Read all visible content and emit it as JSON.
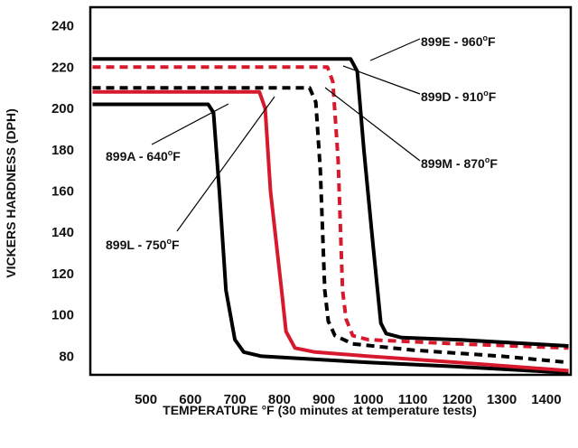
{
  "chart_data": {
    "type": "line",
    "title": "",
    "xlabel": "TEMPERATURE °F (30 minutes at temperature tests)",
    "ylabel": "VICKERS HARDNESS (DPH)",
    "xlim": [
      375,
      1455
    ],
    "ylim": [
      71,
      249
    ],
    "x_ticks": [
      "500",
      "600",
      "700",
      "800",
      "900",
      "1000",
      "1100",
      "1200",
      "1300",
      "1400"
    ],
    "x_tick_values": [
      500,
      600,
      700,
      800,
      900,
      1000,
      1100,
      1200,
      1300,
      1400
    ],
    "y_ticks": [
      "80",
      "100",
      "120",
      "140",
      "160",
      "180",
      "200",
      "220",
      "240"
    ],
    "y_tick_values": [
      80,
      100,
      120,
      140,
      160,
      180,
      200,
      220,
      240
    ],
    "grid": false,
    "series": [
      {
        "name": "899A - 640ºF",
        "color": "#000000",
        "dashed": false,
        "points": [
          [
            380,
            202
          ],
          [
            640,
            202
          ],
          [
            652,
            198
          ],
          [
            665,
            160
          ],
          [
            680,
            112
          ],
          [
            700,
            88
          ],
          [
            720,
            82
          ],
          [
            760,
            80
          ],
          [
            1000,
            77
          ],
          [
            1200,
            75
          ],
          [
            1450,
            72
          ]
        ]
      },
      {
        "name": "899L - 750ºF",
        "color": "#d7192e",
        "dashed": false,
        "points": [
          [
            380,
            208
          ],
          [
            755,
            208
          ],
          [
            768,
            200
          ],
          [
            780,
            160
          ],
          [
            805,
            112
          ],
          [
            815,
            92
          ],
          [
            835,
            84
          ],
          [
            880,
            82
          ],
          [
            1000,
            80
          ],
          [
            1200,
            77
          ],
          [
            1450,
            73
          ]
        ]
      },
      {
        "name": "899M - 870ºF",
        "color": "#000000",
        "dashed": true,
        "points": [
          [
            380,
            210
          ],
          [
            868,
            210
          ],
          [
            882,
            203
          ],
          [
            892,
            170
          ],
          [
            902,
            112
          ],
          [
            910,
            97
          ],
          [
            925,
            90
          ],
          [
            965,
            86
          ],
          [
            1100,
            83
          ],
          [
            1300,
            80
          ],
          [
            1450,
            77
          ]
        ]
      },
      {
        "name": "899D - 910ºF",
        "color": "#d7192e",
        "dashed": true,
        "points": [
          [
            380,
            220
          ],
          [
            908,
            220
          ],
          [
            920,
            213
          ],
          [
            932,
            175
          ],
          [
            942,
            112
          ],
          [
            950,
            98
          ],
          [
            965,
            90
          ],
          [
            1000,
            88
          ],
          [
            1200,
            86
          ],
          [
            1450,
            84
          ]
        ]
      },
      {
        "name": "899E - 960ºF",
        "color": "#000000",
        "dashed": false,
        "points": [
          [
            380,
            224
          ],
          [
            960,
            224
          ],
          [
            975,
            218
          ],
          [
            990,
            180
          ],
          [
            1010,
            135
          ],
          [
            1028,
            96
          ],
          [
            1040,
            91
          ],
          [
            1075,
            89
          ],
          [
            1200,
            88
          ],
          [
            1450,
            85
          ]
        ]
      }
    ],
    "annotations": [
      {
        "base": "899E - 960",
        "deg": "o",
        "unit": "F"
      },
      {
        "base": "899D - 910",
        "deg": "o",
        "unit": "F"
      },
      {
        "base": "899M - 870",
        "deg": "o",
        "unit": "F"
      },
      {
        "base": "899A - 640",
        "deg": "o",
        "unit": "F"
      },
      {
        "base": "899L - 750",
        "deg": "o",
        "unit": "F"
      }
    ]
  }
}
